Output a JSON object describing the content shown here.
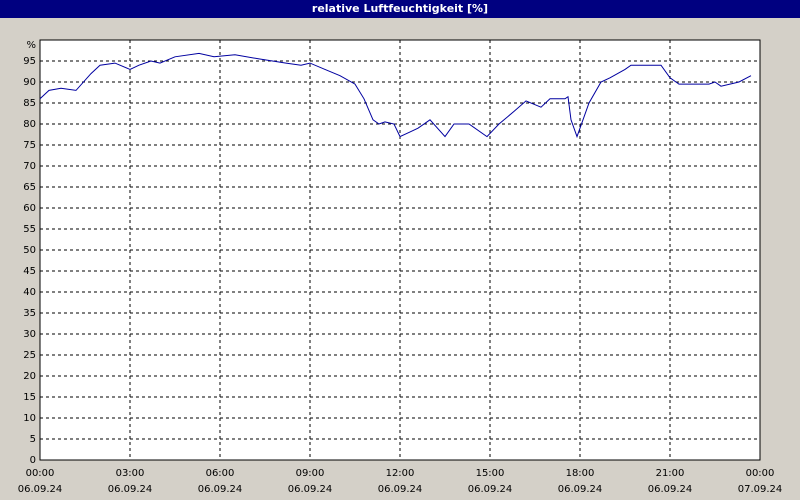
{
  "chart_data": {
    "type": "line",
    "title": "relative Luftfeuchtigkeit [%]",
    "x": [
      0,
      0.3,
      0.7,
      1.2,
      1.7,
      2,
      2.5,
      3,
      3.3,
      3.7,
      4,
      4.5,
      5.3,
      5.8,
      6.5,
      7.3,
      8.2,
      8.7,
      9,
      9.5,
      10,
      10.5,
      10.8,
      11.1,
      11.3,
      11.5,
      11.8,
      12,
      12.3,
      12.6,
      13,
      13.5,
      13.8,
      14.3,
      14.9,
      15.3,
      15.8,
      16.2,
      16.7,
      17,
      17.5,
      17.6,
      17.7,
      17.9,
      18.3,
      18.7,
      19,
      19.5,
      19.7,
      20.2,
      20.7,
      21,
      21.3,
      22.3,
      22.5,
      22.7,
      23.3,
      23.7
    ],
    "series": [
      {
        "name": "relative Luftfeuchtigkeit",
        "color": "#0000a0",
        "values": [
          86,
          88,
          88.5,
          88,
          92,
          94,
          94.5,
          93,
          94,
          95,
          94.5,
          96,
          96.8,
          96,
          96.5,
          95.5,
          94.5,
          94,
          94.5,
          93,
          91.5,
          89.5,
          86,
          81,
          80,
          80.5,
          80,
          77,
          78,
          79,
          81,
          77,
          80,
          80,
          77,
          80,
          83,
          85.5,
          84,
          86,
          86,
          86.5,
          81,
          77,
          85,
          90,
          91,
          93,
          94,
          94,
          94,
          91,
          89.5,
          89.5,
          90,
          89,
          90,
          91.5
        ]
      }
    ],
    "xlim": [
      0,
      24
    ],
    "ylim": [
      0,
      100
    ],
    "xticks": [
      {
        "value": 0,
        "label": "00:00"
      },
      {
        "value": 3,
        "label": "03:00"
      },
      {
        "value": 6,
        "label": "06:00"
      },
      {
        "value": 9,
        "label": "09:00"
      },
      {
        "value": 12,
        "label": "12:00"
      },
      {
        "value": 15,
        "label": "15:00"
      },
      {
        "value": 18,
        "label": "18:00"
      },
      {
        "value": 21,
        "label": "21:00"
      },
      {
        "value": 24,
        "label": "00:00"
      }
    ],
    "xtick_dates": [
      "06.09.24",
      "06.09.24",
      "06.09.24",
      "06.09.24",
      "06.09.24",
      "06.09.24",
      "06.09.24",
      "06.09.24",
      "07.09.24"
    ],
    "yticks": [
      0,
      5,
      10,
      15,
      20,
      25,
      30,
      35,
      40,
      45,
      50,
      55,
      60,
      65,
      70,
      75,
      80,
      85,
      90,
      95,
      {
        "value": 100,
        "label": "%"
      }
    ],
    "grid": true
  }
}
